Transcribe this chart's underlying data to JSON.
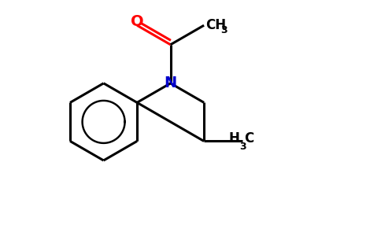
{
  "background_color": "#ffffff",
  "bond_color": "#000000",
  "nitrogen_color": "#0000cc",
  "oxygen_color": "#ff0000",
  "line_width": 2.2,
  "figsize": [
    4.84,
    3.0
  ],
  "dpi": 100,
  "xlim": [
    0,
    9.5
  ],
  "ylim": [
    0,
    6.0
  ]
}
